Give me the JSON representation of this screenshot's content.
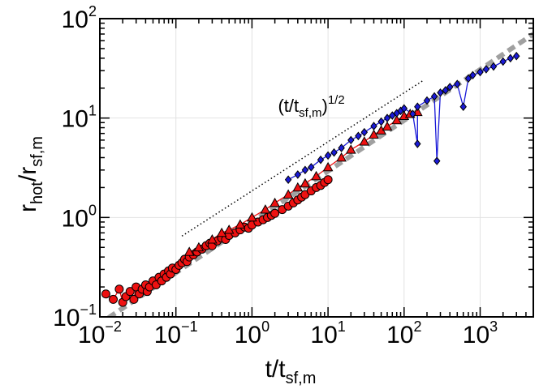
{
  "chart_data": {
    "type": "scatter",
    "title": "",
    "xscale": "log",
    "yscale": "log",
    "xlim": [
      0.01,
      5000
    ],
    "ylim": [
      0.1,
      100
    ],
    "grid": true,
    "xlabel": {
      "main": "t/t",
      "sub": "sf,m"
    },
    "ylabel": {
      "main": "r",
      "sub1": "hot",
      "mid": "/r",
      "sub2": "sf,m"
    },
    "x_ticks": [
      {
        "base": "10",
        "exp": "−2",
        "value": 0.01
      },
      {
        "base": "10",
        "exp": "−1",
        "value": 0.1
      },
      {
        "base": "10",
        "exp": "0",
        "value": 1
      },
      {
        "base": "10",
        "exp": "1",
        "value": 10
      },
      {
        "base": "10",
        "exp": "2",
        "value": 100
      },
      {
        "base": "10",
        "exp": "3",
        "value": 1000
      }
    ],
    "y_ticks": [
      {
        "base": "10",
        "exp": "−1",
        "value": 0.1
      },
      {
        "base": "10",
        "exp": "0",
        "value": 1
      },
      {
        "base": "10",
        "exp": "1",
        "value": 10
      },
      {
        "base": "10",
        "exp": "2",
        "value": 100
      }
    ],
    "annotation": {
      "text_open": "(t/t",
      "text_sub": "sf,m",
      "text_close": ")",
      "text_sup": "1/2",
      "anchor": [
        2.2,
        11.5
      ]
    },
    "reference_lines": [
      {
        "name": "power-law-1/2",
        "style": "dotted",
        "color": "#000000",
        "x": [
          0.12,
          180
        ],
        "y": [
          0.65,
          24
        ]
      },
      {
        "name": "model-fit",
        "style": "dashed",
        "color": "#a0a0a0",
        "x": [
          0.013,
          5000
        ],
        "y": [
          0.098,
          70
        ]
      }
    ],
    "series": [
      {
        "name": "red-circles",
        "marker": "circle",
        "color": "#ee1111",
        "edge": "#000000",
        "points": [
          [
            0.012,
            0.17
          ],
          [
            0.015,
            0.15
          ],
          [
            0.018,
            0.19
          ],
          [
            0.02,
            0.14
          ],
          [
            0.022,
            0.16
          ],
          [
            0.025,
            0.18
          ],
          [
            0.028,
            0.15
          ],
          [
            0.03,
            0.2
          ],
          [
            0.033,
            0.17
          ],
          [
            0.036,
            0.19
          ],
          [
            0.04,
            0.21
          ],
          [
            0.042,
            0.18
          ],
          [
            0.045,
            0.2
          ],
          [
            0.05,
            0.23
          ],
          [
            0.055,
            0.21
          ],
          [
            0.06,
            0.25
          ],
          [
            0.065,
            0.23
          ],
          [
            0.07,
            0.27
          ],
          [
            0.075,
            0.25
          ],
          [
            0.08,
            0.29
          ],
          [
            0.085,
            0.27
          ],
          [
            0.09,
            0.31
          ],
          [
            0.1,
            0.3
          ],
          [
            0.11,
            0.33
          ],
          [
            0.12,
            0.35
          ],
          [
            0.13,
            0.38
          ],
          [
            0.14,
            0.36
          ],
          [
            0.15,
            0.4
          ],
          [
            0.17,
            0.42
          ],
          [
            0.19,
            0.45
          ],
          [
            0.22,
            0.48
          ],
          [
            0.25,
            0.52
          ],
          [
            0.28,
            0.55
          ],
          [
            0.3,
            0.52
          ],
          [
            0.35,
            0.58
          ],
          [
            0.4,
            0.62
          ],
          [
            0.45,
            0.6
          ],
          [
            0.5,
            0.66
          ],
          [
            0.6,
            0.7
          ],
          [
            0.7,
            0.75
          ],
          [
            0.8,
            0.8
          ],
          [
            0.9,
            0.78
          ],
          [
            1.0,
            0.84
          ],
          [
            1.2,
            0.9
          ],
          [
            1.4,
            0.95
          ],
          [
            1.6,
            1.0
          ],
          [
            1.8,
            1.05
          ],
          [
            2.0,
            1.1
          ],
          [
            2.5,
            1.2
          ],
          [
            3.0,
            1.3
          ],
          [
            3.5,
            1.4
          ],
          [
            4.0,
            1.5
          ],
          [
            4.5,
            1.6
          ],
          [
            5.0,
            1.7
          ],
          [
            6.0,
            1.85
          ],
          [
            7.0,
            2.0
          ],
          [
            8.0,
            2.1
          ],
          [
            9.0,
            2.25
          ],
          [
            10.0,
            2.4
          ]
        ]
      },
      {
        "name": "red-triangles",
        "marker": "triangle",
        "color": "#ee1111",
        "edge": "#000000",
        "points": [
          [
            0.15,
            0.45
          ],
          [
            0.2,
            0.5
          ],
          [
            0.3,
            0.6
          ],
          [
            0.4,
            0.7
          ],
          [
            0.5,
            0.75
          ],
          [
            0.7,
            0.85
          ],
          [
            1.0,
            1.0
          ],
          [
            1.5,
            1.2
          ],
          [
            2.0,
            1.4
          ],
          [
            3.0,
            1.7
          ],
          [
            4.0,
            2.0
          ],
          [
            5.0,
            2.2
          ],
          [
            7.0,
            2.6
          ],
          [
            10.0,
            3.2
          ],
          [
            15.0,
            4.0
          ],
          [
            20.0,
            4.8
          ],
          [
            30.0,
            5.8
          ],
          [
            40.0,
            6.8
          ],
          [
            50.0,
            7.5
          ],
          [
            60.0,
            8.2
          ],
          [
            80.0,
            9.5
          ],
          [
            100.0,
            10.5
          ],
          [
            120.0,
            11.0
          ],
          [
            150.0,
            11.5
          ]
        ]
      },
      {
        "name": "blue-diamonds",
        "marker": "diamond",
        "color": "#1a1ad8",
        "edge": "#000000",
        "points": [
          [
            3.0,
            2.4
          ],
          [
            4.0,
            2.7
          ],
          [
            5.0,
            3.0
          ],
          [
            6.0,
            3.2
          ],
          [
            8.0,
            3.8
          ],
          [
            10.0,
            4.2
          ],
          [
            12.0,
            4.5
          ],
          [
            15.0,
            5.0
          ],
          [
            20.0,
            6.0
          ],
          [
            25.0,
            6.6
          ],
          [
            30.0,
            7.2
          ],
          [
            40.0,
            8.3
          ],
          [
            50.0,
            9.2
          ],
          [
            60.0,
            10.0
          ],
          [
            70.0,
            10.6
          ],
          [
            80.0,
            11.2
          ],
          [
            90.0,
            11.8
          ],
          [
            100.0,
            12.5
          ],
          [
            130.0,
            11.0
          ],
          [
            150.0,
            5.5
          ],
          [
            150.0,
            13.0
          ],
          [
            200.0,
            15.0
          ],
          [
            250.0,
            16.5
          ],
          [
            270.0,
            3.7
          ],
          [
            300.0,
            18.0
          ],
          [
            350.0,
            19.0
          ],
          [
            400.0,
            20.5
          ],
          [
            500.0,
            22.0
          ],
          [
            600.0,
            13.0
          ],
          [
            700.0,
            25.0
          ],
          [
            800.0,
            27.0
          ],
          [
            1000.0,
            29.0
          ],
          [
            1200.0,
            31.0
          ],
          [
            1500.0,
            33.0
          ],
          [
            2000.0,
            37.0
          ],
          [
            2500.0,
            40.0
          ],
          [
            3000.0,
            42.0
          ]
        ]
      }
    ]
  }
}
